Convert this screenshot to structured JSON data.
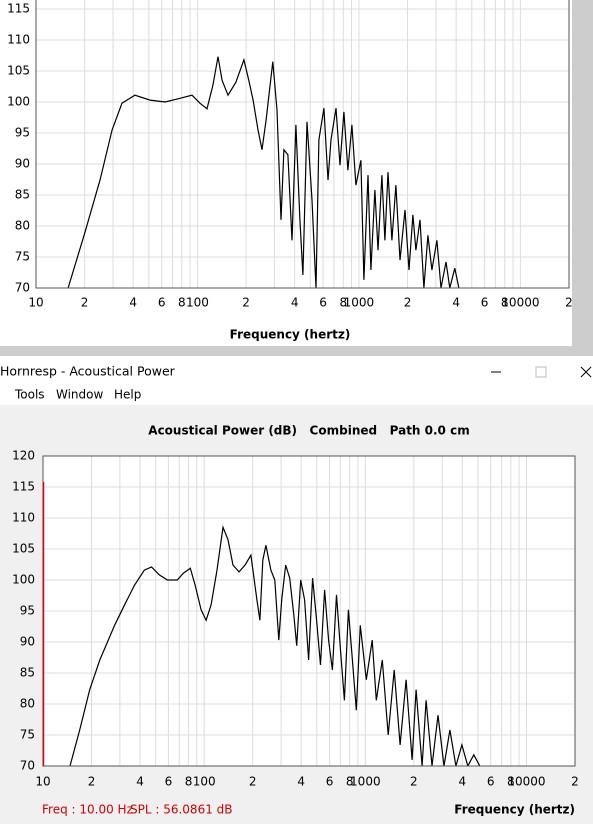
{
  "window": {
    "title": "Hornresp - Acoustical Power",
    "menu": [
      "Tools",
      "Window",
      "Help"
    ]
  },
  "chart_data": [
    {
      "type": "line",
      "xlabel": "Frequency (hertz)",
      "xscale": "log",
      "grid": true,
      "xlim": [
        10,
        20000
      ],
      "ylim": [
        70,
        120
      ],
      "xticks": [
        10,
        {
          "value": 20,
          "label": "2"
        },
        {
          "value": 40,
          "label": "4"
        },
        {
          "value": 60,
          "label": "6"
        },
        {
          "value": 80,
          "label": "8"
        },
        100,
        {
          "value": 200,
          "label": "2"
        },
        {
          "value": 400,
          "label": "4"
        },
        {
          "value": 600,
          "label": "6"
        },
        {
          "value": 800,
          "label": "8"
        },
        1000,
        {
          "value": 2000,
          "label": "2"
        },
        {
          "value": 4000,
          "label": "4"
        },
        {
          "value": 6000,
          "label": "6"
        },
        {
          "value": 8000,
          "label": "8"
        },
        10000,
        {
          "value": 20000,
          "label": "2"
        }
      ],
      "xminor": [
        30,
        50,
        70,
        90,
        300,
        500,
        700,
        900,
        3000,
        5000,
        7000,
        9000
      ],
      "yticks": [
        70,
        75,
        80,
        85,
        90,
        95,
        100,
        105,
        110,
        115
      ],
      "series": [
        {
          "color": "#000000",
          "x": [
            15.8,
            20.1,
            24.9,
            29.6,
            34.1,
            41.0,
            50.8,
            62.9,
            78.0,
            92.5,
            103.5,
            114.5,
            124.7,
            134,
            142,
            154.5,
            173,
            194,
            208,
            221,
            237,
            251,
            266,
            293,
            311,
            329,
            343,
            363,
            385,
            407,
            431,
            450,
            477,
            512,
            542,
            565,
            607,
            643,
            671,
            721,
            763,
            807,
            855,
            905,
            958,
            1028,
            1074,
            1138,
            1186,
            1256,
            1312,
            1388,
            1449,
            1514,
            1600,
            1694,
            1795,
            1928,
            2042,
            2158,
            2254,
            2388,
            2525,
            2673,
            2831,
            3041,
            3221,
            3459,
            3656,
            3926,
            4159
          ],
          "values": [
            70,
            79.0,
            87.4,
            95.5,
            99.8,
            101.1,
            100.3,
            100.0,
            100.6,
            101.1,
            99.8,
            98.9,
            102.7,
            107.3,
            103.5,
            101.1,
            103.2,
            106.8,
            103.5,
            100.3,
            95.5,
            92.3,
            97.1,
            106.5,
            98.7,
            81.0,
            92.3,
            91.5,
            77.7,
            96.3,
            81.0,
            72.1,
            96.8,
            84.2,
            70,
            93.9,
            99.0,
            87.4,
            93.9,
            99.0,
            89.8,
            98.4,
            89.0,
            96.3,
            86.6,
            90.6,
            71.3,
            88.2,
            72.9,
            85.8,
            76.1,
            88.2,
            77.7,
            88.7,
            77.7,
            86.6,
            74.5,
            82.6,
            72.9,
            81.8,
            76.1,
            81.0,
            70,
            78.5,
            72.9,
            77.7,
            70,
            74.2,
            70,
            73.2,
            70
          ]
        }
      ]
    },
    {
      "type": "line",
      "title": "Acoustical Power (dB)   Combined   Path 0.0 cm",
      "xlabel": "Frequency (hertz)",
      "xscale": "log",
      "grid": true,
      "xlim": [
        10,
        20000
      ],
      "ylim": [
        70,
        120
      ],
      "xticks": [
        10,
        {
          "value": 20,
          "label": "2"
        },
        {
          "value": 40,
          "label": "4"
        },
        {
          "value": 60,
          "label": "6"
        },
        {
          "value": 80,
          "label": "8"
        },
        100,
        {
          "value": 200,
          "label": "2"
        },
        {
          "value": 400,
          "label": "4"
        },
        {
          "value": 600,
          "label": "6"
        },
        {
          "value": 800,
          "label": "8"
        },
        1000,
        {
          "value": 2000,
          "label": "2"
        },
        {
          "value": 4000,
          "label": "4"
        },
        {
          "value": 6000,
          "label": "6"
        },
        {
          "value": 8000,
          "label": "8"
        },
        10000,
        {
          "value": 20000,
          "label": "2"
        }
      ],
      "xminor": [
        30,
        50,
        70,
        90,
        300,
        500,
        700,
        900,
        3000,
        5000,
        7000,
        9000
      ],
      "yticks": [
        70,
        75,
        80,
        85,
        90,
        95,
        100,
        105,
        110,
        115,
        120
      ],
      "series": [
        {
          "color": "#000000",
          "x": [
            14.7,
            16.9,
            19.5,
            22.5,
            27.8,
            32.1,
            37.0,
            42.6,
            47.1,
            52.8,
            59.1,
            68.1,
            74.2,
            82.0,
            87.9,
            95.7,
            102.8,
            110.4,
            120.2,
            130.9,
            140.6,
            151.0,
            164.4,
            179.1,
            195.0,
            212.3,
            221.8,
            231.2,
            241.5,
            259.4,
            274.2,
            290.4,
            302.7,
            320.6,
            339.6,
            359.7,
            374.9,
            397.2,
            419.8,
            444.6,
            470.9,
            498.8,
            527.2,
            558.5,
            591.6,
            625.2,
            662.2,
            701.5,
            741.3,
            785.2,
            831.8,
            879.0,
            931.1,
            1014,
            1104,
            1169,
            1274,
            1387,
            1510,
            1644,
            1791,
            1950,
            2065,
            2249,
            2382,
            2594,
            2825,
            3076,
            3350,
            3648,
            3972,
            4325,
            4710,
            5129
          ],
          "values": [
            70,
            75.8,
            82.3,
            87.1,
            92.7,
            96.0,
            99.2,
            101.6,
            102.1,
            100.8,
            100.0,
            100.0,
            101.1,
            101.9,
            99.2,
            95.2,
            93.5,
            96.0,
            101.6,
            108.5,
            106.5,
            102.4,
            101.3,
            102.4,
            104.0,
            96.8,
            93.5,
            103.2,
            105.6,
            101.6,
            100.0,
            90.3,
            96.8,
            102.4,
            100.3,
            94.4,
            89.4,
            100.0,
            96.8,
            87.1,
            100.3,
            93.5,
            86.3,
            98.4,
            90.3,
            85.5,
            97.6,
            88.7,
            80.6,
            95.2,
            87.1,
            79.0,
            92.7,
            83.9,
            90.3,
            80.6,
            87.1,
            75.0,
            85.5,
            73.4,
            83.9,
            71.0,
            82.3,
            70,
            80.6,
            70,
            78.2,
            70,
            75.8,
            70,
            73.4,
            70,
            71.8,
            70
          ]
        }
      ]
    }
  ],
  "status": {
    "freq": "Freq : 10.00 Hz",
    "spl": "SPL : 56.0861 dB"
  }
}
